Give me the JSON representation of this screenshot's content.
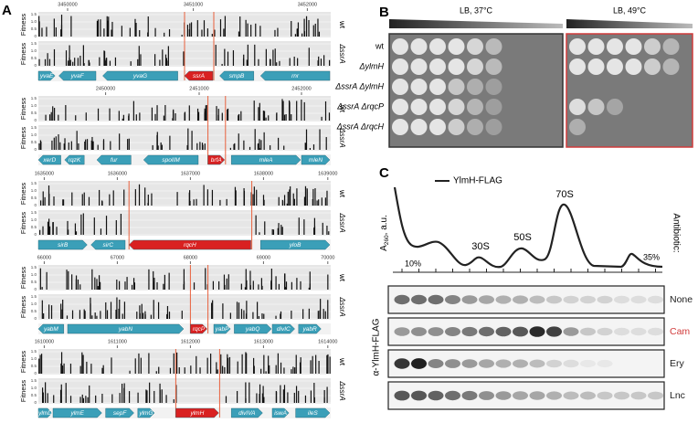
{
  "panel_a": {
    "label": "A",
    "fitness_label": "Fitness",
    "fitness_ticks": [
      "1.5",
      "1.0",
      "0.5",
      "0"
    ],
    "strains": [
      "wt",
      "ΔssrA"
    ],
    "tracks": [
      {
        "coordinates": [
          "3450000",
          "3451000",
          "3452000"
        ],
        "genes": [
          "yvaE",
          "yvaF",
          "yvaG",
          "ssrA",
          "smpB",
          "rnr"
        ]
      },
      {
        "coordinates": [
          "2450000",
          "2451000",
          "2452000"
        ],
        "genes": [
          "xerD",
          "rqzK",
          "fur",
          "spoIIM",
          "brfA",
          "mleA",
          "mleN"
        ]
      },
      {
        "coordinates": [
          "1635000",
          "1636000",
          "1637000",
          "1638000",
          "1639000"
        ],
        "genes": [
          "sirB",
          "sirC",
          "rqcH",
          "yloB"
        ]
      },
      {
        "coordinates": [
          "66000",
          "67000",
          "68000",
          "69000",
          "70000"
        ],
        "genes": [
          "yabM",
          "yabN",
          "rqcP",
          "yabP",
          "yabQ",
          "divIC",
          "yabR"
        ]
      },
      {
        "coordinates": [
          "1610000",
          "1611000",
          "1612000",
          "1613000",
          "1614000"
        ],
        "genes": [
          "ylmD",
          "ylmE",
          "sepF",
          "ylmG",
          "ylmH",
          "divIVA",
          "iswA",
          "ileS"
        ]
      }
    ]
  },
  "panel_b": {
    "label": "B",
    "conditions": [
      "LB, 37°C",
      "LB, 49°C"
    ],
    "strains": [
      "wt",
      "ΔylmH",
      "ΔssrA ΔylmH",
      "ΔssrA ΔrqcP",
      "ΔssrA ΔrqcH"
    ]
  },
  "panel_c": {
    "label": "C",
    "legend": "YlmH-FLAG",
    "y_axis": {
      "main": "A",
      "sub": "260",
      "rest": ", a.u."
    },
    "peaks": [
      "30S",
      "50S",
      "70S"
    ],
    "gradient": [
      "10%",
      "35%"
    ],
    "antibiotic_label": "Antibiotic:",
    "blot_label": "α-YlmH-FLAG",
    "antibiotics": [
      "None",
      "Cam",
      "Ery",
      "Lnc"
    ]
  }
}
